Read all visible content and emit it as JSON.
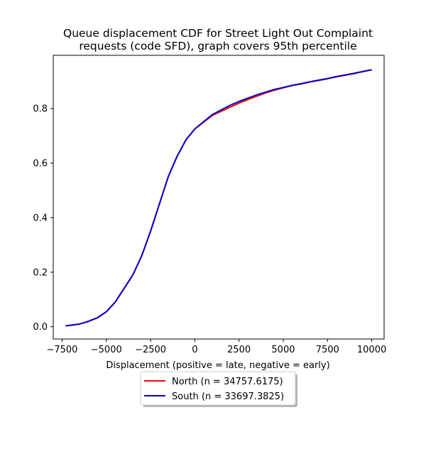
{
  "chart_data": {
    "type": "line",
    "title_lines": [
      "Queue displacement CDF for Street Light Out Complaint",
      "requests (code SFD), graph covers 95th percentile"
    ],
    "xlabel": "Displacement (positive = late, negative = early)",
    "ylabel": "",
    "xlim": [
      -8000,
      10700
    ],
    "ylim": [
      -0.045,
      0.995
    ],
    "xticks": [
      -7500,
      -5000,
      -2500,
      0,
      2500,
      5000,
      7500,
      10000
    ],
    "xtick_labels": [
      "−7500",
      "−5000",
      "−2500",
      "0",
      "2500",
      "5000",
      "7500",
      "10000"
    ],
    "yticks": [
      0.0,
      0.2,
      0.4,
      0.6,
      0.8
    ],
    "ytick_labels": [
      "0.0",
      "0.2",
      "0.4",
      "0.6",
      "0.8"
    ],
    "grid": false,
    "legend_position": "below",
    "series": [
      {
        "name": "North (n = 34757.6175)",
        "color": "#ff0000",
        "points": [
          [
            -7300,
            0.003
          ],
          [
            -6500,
            0.01
          ],
          [
            -6000,
            0.02
          ],
          [
            -5500,
            0.033
          ],
          [
            -5000,
            0.055
          ],
          [
            -4500,
            0.09
          ],
          [
            -4000,
            0.14
          ],
          [
            -3500,
            0.19
          ],
          [
            -3000,
            0.26
          ],
          [
            -2500,
            0.35
          ],
          [
            -2000,
            0.45
          ],
          [
            -1500,
            0.55
          ],
          [
            -1000,
            0.625
          ],
          [
            -500,
            0.685
          ],
          [
            0,
            0.725
          ],
          [
            500,
            0.75
          ],
          [
            1000,
            0.775
          ],
          [
            1500,
            0.79
          ],
          [
            2000,
            0.805
          ],
          [
            2500,
            0.82
          ],
          [
            3000,
            0.833
          ],
          [
            3500,
            0.845
          ],
          [
            4000,
            0.857
          ],
          [
            4500,
            0.867
          ],
          [
            5000,
            0.876
          ],
          [
            5500,
            0.884
          ],
          [
            6000,
            0.89
          ],
          [
            6500,
            0.897
          ],
          [
            7000,
            0.903
          ],
          [
            7500,
            0.909
          ],
          [
            8000,
            0.916
          ],
          [
            8500,
            0.922
          ],
          [
            9000,
            0.928
          ],
          [
            9500,
            0.935
          ],
          [
            10000,
            0.942
          ]
        ]
      },
      {
        "name": "South (n = 33697.3825)",
        "color": "#0000cc",
        "points": [
          [
            -7300,
            0.003
          ],
          [
            -6500,
            0.01
          ],
          [
            -6000,
            0.02
          ],
          [
            -5500,
            0.033
          ],
          [
            -5000,
            0.055
          ],
          [
            -4500,
            0.09
          ],
          [
            -4000,
            0.14
          ],
          [
            -3500,
            0.19
          ],
          [
            -3000,
            0.26
          ],
          [
            -2500,
            0.35
          ],
          [
            -2000,
            0.45
          ],
          [
            -1500,
            0.55
          ],
          [
            -1000,
            0.625
          ],
          [
            -500,
            0.685
          ],
          [
            0,
            0.725
          ],
          [
            500,
            0.752
          ],
          [
            1000,
            0.778
          ],
          [
            1500,
            0.795
          ],
          [
            2000,
            0.812
          ],
          [
            2500,
            0.826
          ],
          [
            3000,
            0.838
          ],
          [
            3500,
            0.85
          ],
          [
            4000,
            0.86
          ],
          [
            4500,
            0.87
          ],
          [
            5000,
            0.877
          ],
          [
            5500,
            0.885
          ],
          [
            6000,
            0.891
          ],
          [
            6500,
            0.898
          ],
          [
            7000,
            0.904
          ],
          [
            7500,
            0.91
          ],
          [
            8000,
            0.917
          ],
          [
            8500,
            0.923
          ],
          [
            9000,
            0.929
          ],
          [
            9500,
            0.936
          ],
          [
            10000,
            0.942
          ]
        ]
      }
    ]
  }
}
